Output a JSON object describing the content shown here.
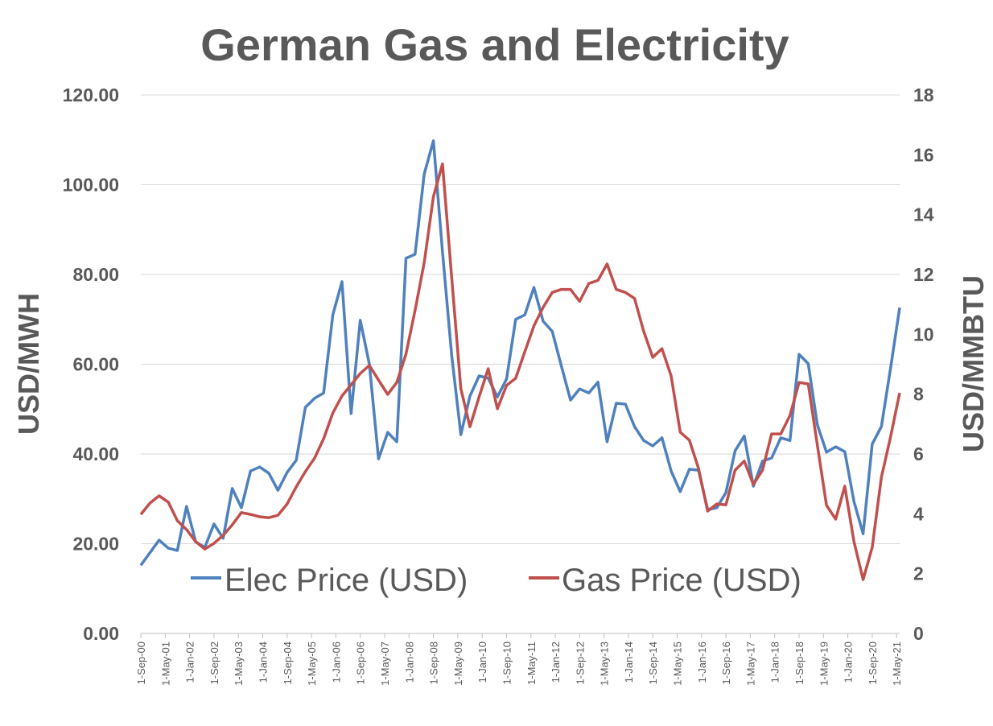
{
  "chart_data": {
    "type": "line",
    "title": "German Gas and Electricity",
    "ylabel": "USD/MWH",
    "y2label": "USD/MMBTU",
    "ylim": [
      0,
      120
    ],
    "y2lim": [
      0,
      18
    ],
    "yticks": [
      "0.00",
      "20.00",
      "40.00",
      "60.00",
      "80.00",
      "100.00",
      "120.00"
    ],
    "y2ticks": [
      "0",
      "2",
      "4",
      "6",
      "8",
      "10",
      "12",
      "14",
      "16",
      "18"
    ],
    "xlim": [
      "2000-09",
      "2021-06"
    ],
    "xticks": [
      "1-Sep-00",
      "1-May-01",
      "1-Jan-02",
      "1-Sep-02",
      "1-May-03",
      "1-Jan-04",
      "1-Sep-04",
      "1-May-05",
      "1-Jan-06",
      "1-Sep-06",
      "1-May-07",
      "1-Jan-08",
      "1-Sep-08",
      "1-May-09",
      "1-Jan-10",
      "1-Sep-10",
      "1-May-11",
      "1-Jan-12",
      "1-Sep-12",
      "1-May-13",
      "1-Jan-14",
      "1-Sep-14",
      "1-May-15",
      "1-Jan-16",
      "1-Sep-16",
      "1-May-17",
      "1-Jan-18",
      "1-Sep-18",
      "1-May-19",
      "1-Jan-20",
      "1-Sep-20",
      "1-May-21"
    ],
    "grid": true,
    "legend": "bottom-inside",
    "x": [
      "2000-09",
      "2000-12",
      "2001-03",
      "2001-06",
      "2001-09",
      "2001-12",
      "2002-03",
      "2002-06",
      "2002-09",
      "2002-12",
      "2003-03",
      "2003-06",
      "2003-09",
      "2003-12",
      "2004-03",
      "2004-06",
      "2004-09",
      "2004-12",
      "2005-03",
      "2005-06",
      "2005-09",
      "2005-12",
      "2006-03",
      "2006-06",
      "2006-09",
      "2006-12",
      "2007-03",
      "2007-06",
      "2007-09",
      "2007-12",
      "2008-03",
      "2008-06",
      "2008-09",
      "2008-12",
      "2009-03",
      "2009-06",
      "2009-09",
      "2009-12",
      "2010-03",
      "2010-06",
      "2010-09",
      "2010-12",
      "2011-03",
      "2011-06",
      "2011-09",
      "2011-12",
      "2012-03",
      "2012-06",
      "2012-09",
      "2012-12",
      "2013-03",
      "2013-06",
      "2013-09",
      "2013-12",
      "2014-03",
      "2014-06",
      "2014-09",
      "2014-12",
      "2015-03",
      "2015-06",
      "2015-09",
      "2015-12",
      "2016-03",
      "2016-06",
      "2016-09",
      "2016-12",
      "2017-03",
      "2017-06",
      "2017-09",
      "2017-12",
      "2018-03",
      "2018-06",
      "2018-09",
      "2018-12",
      "2019-03",
      "2019-06",
      "2019-09",
      "2019-12",
      "2020-03",
      "2020-06",
      "2020-09",
      "2020-12",
      "2021-03",
      "2021-06"
    ],
    "series": [
      {
        "name": "Elec Price (USD)",
        "axis": "left",
        "color": "#4F81BD",
        "values": [
          15.2,
          18.0,
          20.8,
          19.0,
          18.5,
          28.3,
          20.4,
          19.2,
          24.4,
          21.2,
          32.3,
          28.0,
          36.2,
          37.1,
          35.7,
          31.9,
          35.9,
          38.6,
          50.4,
          52.4,
          53.6,
          71.0,
          78.4,
          49.0,
          69.8,
          60.0,
          38.9,
          44.8,
          42.7,
          83.6,
          84.5,
          102.4,
          109.8,
          85.0,
          62.0,
          44.3,
          52.9,
          57.4,
          56.9,
          52.7,
          56.7,
          70.0,
          71.0,
          77.1,
          69.6,
          67.3,
          59.6,
          52.0,
          54.5,
          53.6,
          56.0,
          42.7,
          51.3,
          51.1,
          46.1,
          43.0,
          41.8,
          43.6,
          36.2,
          31.6,
          36.6,
          36.4,
          27.6,
          28.0,
          31.4,
          40.7,
          44.0,
          32.8,
          38.4,
          39.1,
          43.6,
          43.0,
          62.2,
          60.1,
          46.5,
          40.4,
          41.6,
          40.5,
          29.4,
          22.2,
          42.2,
          46.1,
          59.0,
          72.6
        ]
      },
      {
        "name": "Gas Price (USD)",
        "axis": "right",
        "color": "#C0504D",
        "values": [
          3.98,
          4.36,
          4.6,
          4.39,
          3.77,
          3.47,
          3.07,
          2.82,
          3.01,
          3.28,
          3.63,
          4.04,
          3.98,
          3.9,
          3.87,
          3.95,
          4.33,
          4.9,
          5.41,
          5.86,
          6.51,
          7.37,
          7.94,
          8.31,
          8.69,
          8.96,
          8.47,
          7.99,
          8.39,
          9.34,
          10.8,
          12.4,
          14.6,
          15.7,
          11.9,
          8.18,
          6.91,
          7.91,
          8.85,
          7.51,
          8.29,
          8.53,
          9.42,
          10.28,
          10.9,
          11.4,
          11.5,
          11.5,
          11.1,
          11.7,
          11.8,
          12.35,
          11.5,
          11.4,
          11.2,
          10.1,
          9.23,
          9.52,
          8.61,
          6.73,
          6.46,
          5.52,
          4.09,
          4.33,
          4.3,
          5.46,
          5.76,
          4.98,
          5.46,
          6.67,
          6.67,
          7.29,
          8.39,
          8.34,
          6.3,
          4.28,
          3.82,
          4.92,
          3.07,
          1.8,
          2.88,
          5.22,
          6.56,
          8.04
        ]
      }
    ]
  }
}
